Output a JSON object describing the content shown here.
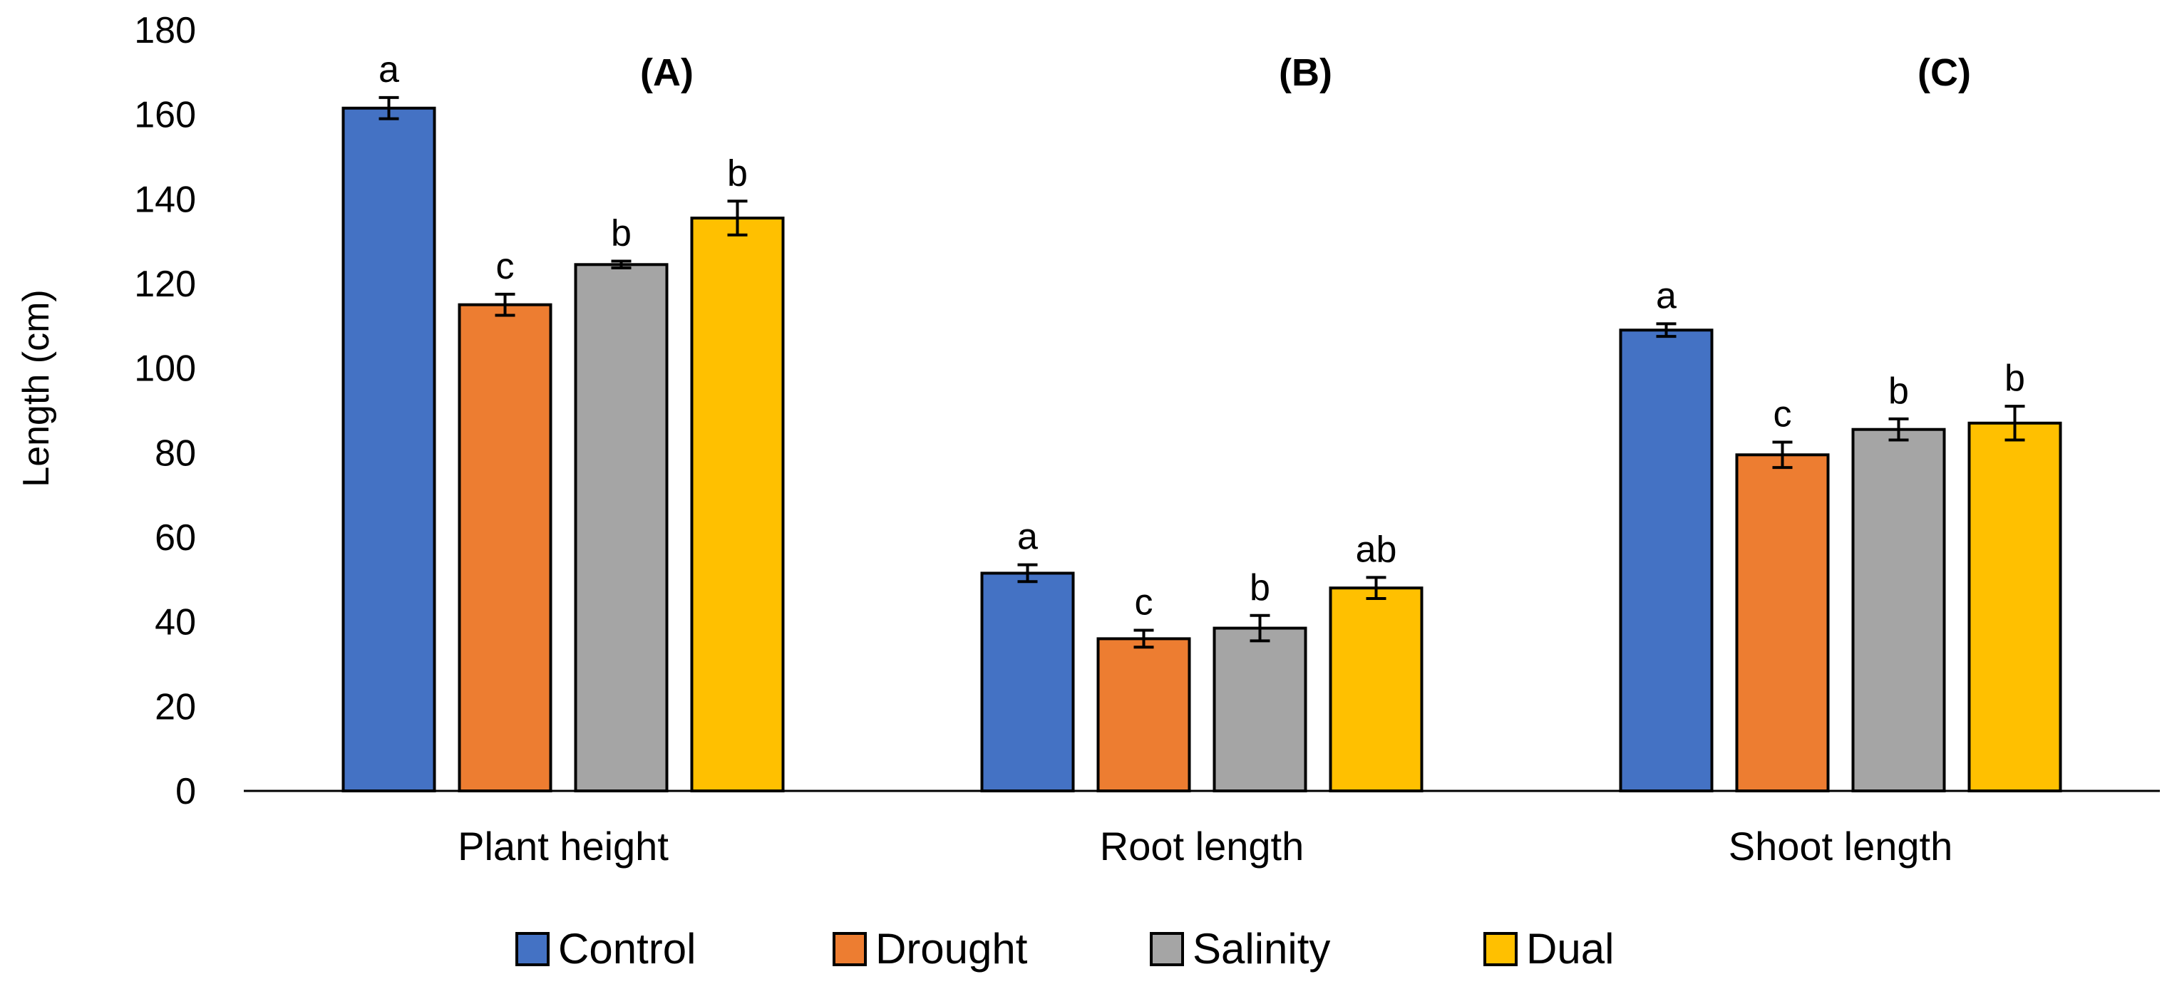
{
  "chart_data": {
    "type": "bar",
    "title": "",
    "xlabel": "",
    "ylabel": "Length (cm)",
    "ylim": [
      0,
      180
    ],
    "yticks": [
      0,
      20,
      40,
      60,
      80,
      100,
      120,
      140,
      160,
      180
    ],
    "grid": false,
    "legend_position": "bottom",
    "categories": [
      "Plant height",
      "Root length",
      "Shoot length"
    ],
    "panel_labels": [
      "(A)",
      "(B)",
      "(C)"
    ],
    "series": [
      {
        "name": "Control",
        "color": "#4472C4",
        "values": [
          161.5,
          51.5,
          109
        ],
        "errors": [
          2.5,
          2.0,
          1.5
        ],
        "letters": [
          "a",
          "a",
          "a"
        ]
      },
      {
        "name": "Drought",
        "color": "#ED7D31",
        "values": [
          115,
          36,
          79.5
        ],
        "errors": [
          2.5,
          2.0,
          3.0
        ],
        "letters": [
          "c",
          "c",
          "c"
        ]
      },
      {
        "name": "Salinity",
        "color": "#A5A5A5",
        "values": [
          124.5,
          38.5,
          85.5
        ],
        "errors": [
          0.8,
          3.0,
          2.5
        ],
        "letters": [
          "b",
          "b",
          "b"
        ]
      },
      {
        "name": "Dual",
        "color": "#FFC000",
        "values": [
          135.5,
          48,
          87
        ],
        "errors": [
          4.0,
          2.5,
          4.0
        ],
        "letters": [
          "b",
          "ab",
          "b"
        ]
      }
    ]
  }
}
